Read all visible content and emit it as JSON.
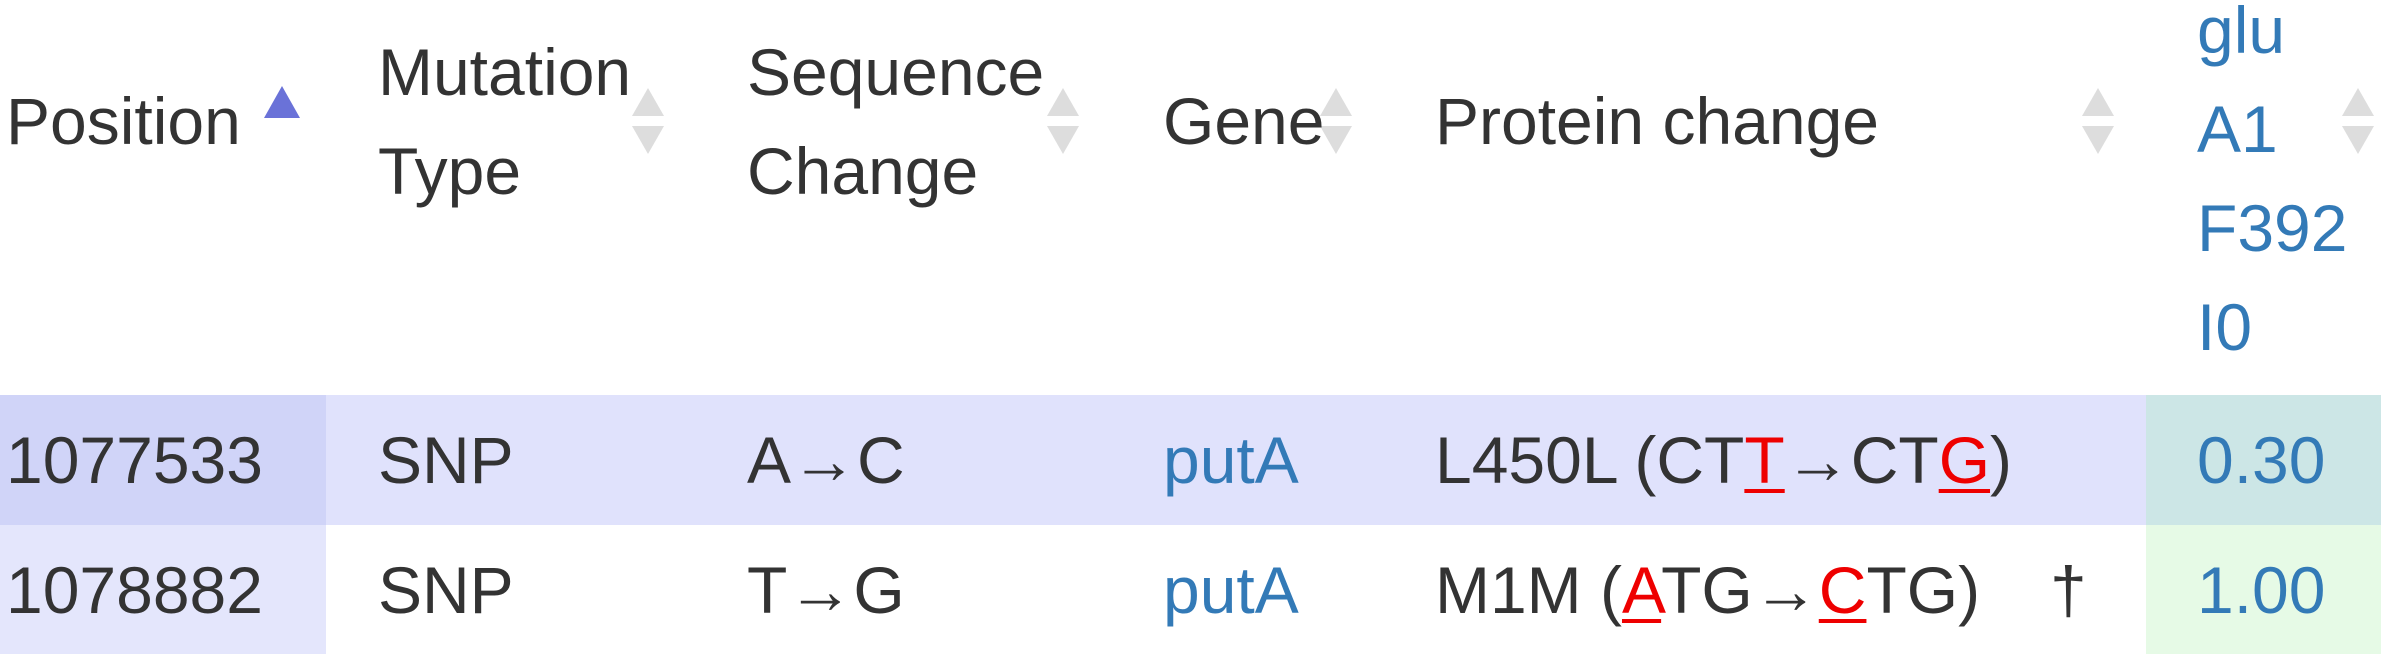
{
  "table": {
    "headers": [
      {
        "lines": [
          "Position"
        ]
      },
      {
        "lines": [
          "Mutation",
          "Type"
        ]
      },
      {
        "lines": [
          "Sequence",
          "Change"
        ]
      },
      {
        "lines": [
          "Gene"
        ]
      },
      {
        "lines": [
          "Protein change"
        ]
      },
      {
        "lines": [
          "glu",
          "A1",
          "F392",
          "I0"
        ]
      }
    ],
    "rows": [
      {
        "position": "1077533",
        "type": "SNP",
        "sequence": "A→C",
        "gene": "putA",
        "protein": [
          "L450L (CT",
          "T",
          "→CT",
          "G",
          ")"
        ],
        "note": "",
        "value": "0.30"
      },
      {
        "position": "1078882",
        "type": "SNP",
        "sequence": "T→G",
        "gene": "putA",
        "protein": [
          "M1M (",
          "A",
          "TG→",
          "C",
          "TG)"
        ],
        "note": "†",
        "value": "1.00"
      }
    ]
  }
}
